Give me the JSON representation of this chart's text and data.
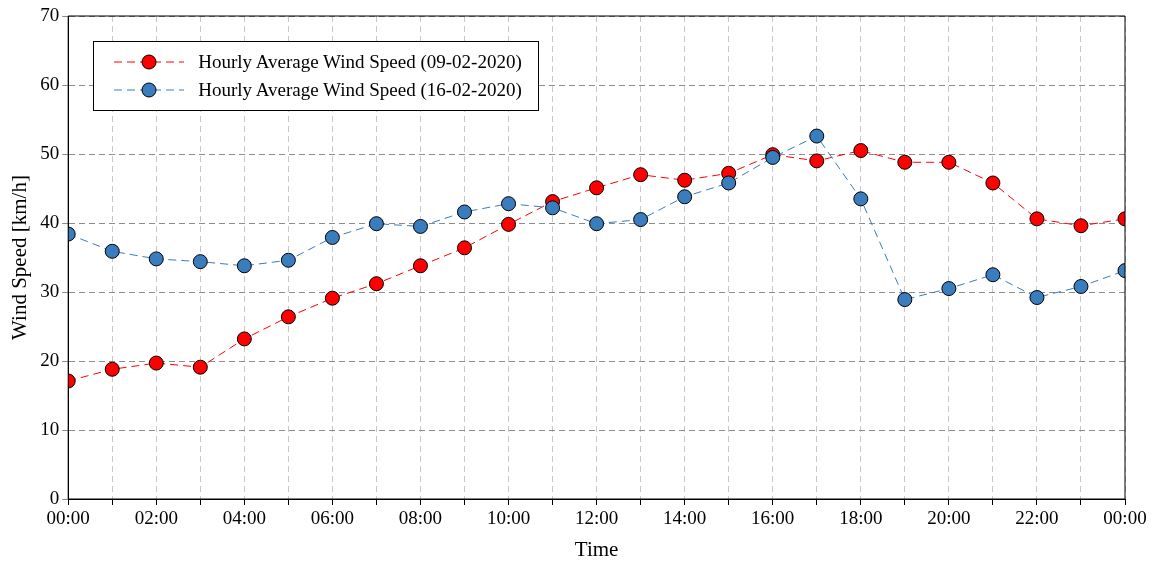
{
  "chart_data": {
    "type": "line",
    "xlabel": "Time",
    "ylabel": "Wind Speed [km/h]",
    "x": [
      0,
      1,
      2,
      3,
      4,
      5,
      6,
      7,
      8,
      9,
      10,
      11,
      12,
      13,
      14,
      15,
      16,
      17,
      18,
      19,
      20,
      21,
      22,
      23,
      24
    ],
    "series": [
      {
        "name": "Hourly Average Wind Speed (09-02-2020)",
        "color": "#ff0000",
        "values": [
          17.1,
          18.8,
          19.7,
          19.1,
          23.2,
          26.4,
          29.1,
          31.2,
          33.8,
          36.4,
          39.8,
          43.1,
          45.1,
          47.0,
          46.2,
          47.2,
          49.9,
          49.0,
          50.5,
          48.8,
          48.8,
          45.8,
          40.6,
          39.6,
          40.6
        ]
      },
      {
        "name": "Hourly Average Wind Speed (16-02-2020)",
        "color": "#3a7dbf",
        "values": [
          38.4,
          35.9,
          34.8,
          34.4,
          33.8,
          34.6,
          37.9,
          39.9,
          39.5,
          41.6,
          42.8,
          42.2,
          39.9,
          40.5,
          43.8,
          45.8,
          49.5,
          52.6,
          43.5,
          28.9,
          30.5,
          32.5,
          29.2,
          30.8,
          33.1
        ]
      }
    ],
    "xlim": [
      0,
      24
    ],
    "xticks": [
      {
        "value": 0,
        "label": "00:00"
      },
      {
        "value": 1,
        "label": null
      },
      {
        "value": 2,
        "label": "02:00"
      },
      {
        "value": 3,
        "label": null
      },
      {
        "value": 4,
        "label": "04:00"
      },
      {
        "value": 5,
        "label": null
      },
      {
        "value": 6,
        "label": "06:00"
      },
      {
        "value": 7,
        "label": null
      },
      {
        "value": 8,
        "label": "08:00"
      },
      {
        "value": 9,
        "label": null
      },
      {
        "value": 10,
        "label": "10:00"
      },
      {
        "value": 11,
        "label": null
      },
      {
        "value": 12,
        "label": "12:00"
      },
      {
        "value": 13,
        "label": null
      },
      {
        "value": 14,
        "label": "14:00"
      },
      {
        "value": 15,
        "label": null
      },
      {
        "value": 16,
        "label": "16:00"
      },
      {
        "value": 17,
        "label": null
      },
      {
        "value": 18,
        "label": "18:00"
      },
      {
        "value": 19,
        "label": null
      },
      {
        "value": 20,
        "label": "20:00"
      },
      {
        "value": 21,
        "label": null
      },
      {
        "value": 22,
        "label": "22:00"
      },
      {
        "value": 23,
        "label": null
      },
      {
        "value": 24,
        "label": "00:00"
      }
    ],
    "ylim": [
      0,
      70
    ],
    "yticks": [
      0,
      10,
      20,
      30,
      40,
      50,
      60,
      70
    ],
    "grid": true,
    "legend": "top left",
    "marker": "circle",
    "line_style": "dashed"
  }
}
